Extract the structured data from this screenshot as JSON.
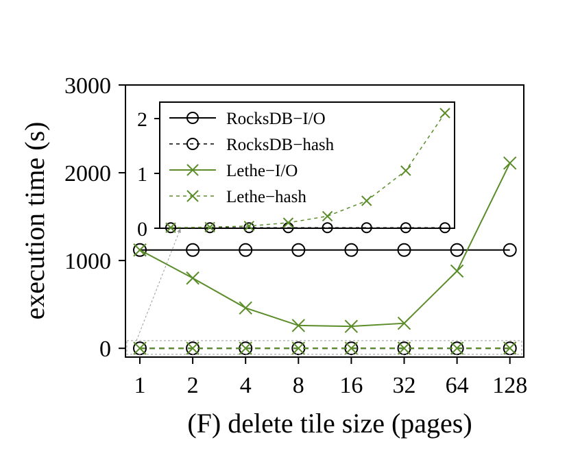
{
  "chart_data": {
    "type": "line",
    "xlabel": "(F) delete tile size (pages)",
    "ylabel": "execution time (s)",
    "x": [
      1,
      2,
      4,
      8,
      16,
      32,
      64,
      128
    ],
    "x_tick_labels": [
      "1",
      "2",
      "4",
      "8",
      "16",
      "32",
      "64",
      "128"
    ],
    "x_scale": "log2",
    "ylim": [
      -100,
      3000
    ],
    "y_ticks": [
      0,
      1000,
      2000,
      3000
    ],
    "y_tick_labels": [
      "0",
      "1000",
      "2000",
      "3000"
    ],
    "grid": false,
    "legend_position": "inside inset, top-left",
    "series": [
      {
        "name": "RocksDB−I/O",
        "color": "#000000",
        "line": "solid",
        "marker": "circle",
        "values": [
          1120,
          1120,
          1120,
          1120,
          1120,
          1120,
          1120,
          1120
        ]
      },
      {
        "name": "RocksDB−hash",
        "color": "#000000",
        "line": "dashed",
        "marker": "circle",
        "values": [
          0.01,
          0.01,
          0.01,
          0.01,
          0.01,
          0.01,
          0.01,
          0.01
        ]
      },
      {
        "name": "Lethe−I/O",
        "color": "#5b8c2a",
        "line": "solid",
        "marker": "x",
        "values": [
          1120,
          800,
          460,
          260,
          250,
          285,
          880,
          2110
        ]
      },
      {
        "name": "Lethe−hash",
        "color": "#5b8c2a",
        "line": "dashed",
        "marker": "x",
        "values": [
          0.01,
          0.02,
          0.04,
          0.1,
          0.22,
          0.5,
          1.05,
          2.1
        ]
      }
    ],
    "inset": {
      "ylim": [
        0,
        2.3
      ],
      "y_ticks": [
        0,
        1,
        2
      ],
      "y_tick_labels": [
        "0",
        "1",
        "2"
      ]
    }
  }
}
